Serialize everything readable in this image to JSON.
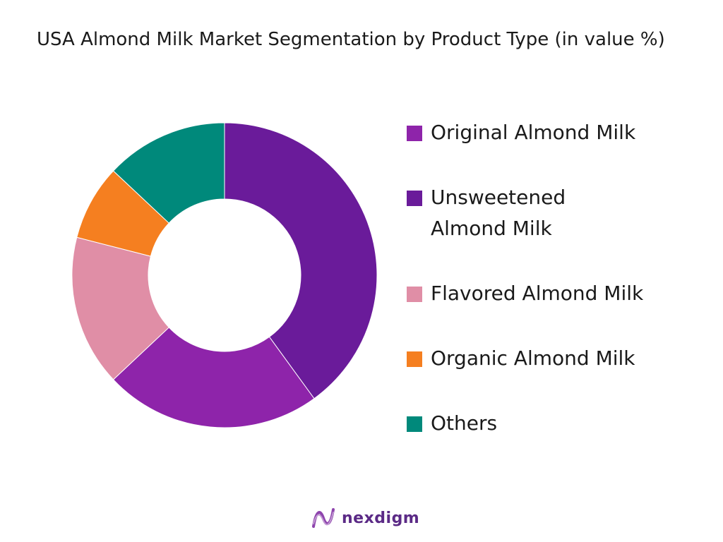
{
  "chart_data": {
    "type": "pie",
    "title": "USA Almond Milk Market Segmentation by Product Type (in value %)",
    "hole": true,
    "categories": [
      "Unsweetened Almond Milk",
      "Original Almond Milk",
      "Flavored Almond Milk",
      "Organic Almond Milk",
      "Others"
    ],
    "values": [
      40,
      23,
      16,
      8,
      13
    ],
    "colors": [
      "#6a1b9a",
      "#8e24aa",
      "#e08ea6",
      "#f57f20",
      "#00897b"
    ],
    "legend_order": [
      {
        "label": "Original Almond Milk",
        "color": "#8e24aa"
      },
      {
        "label": "Unsweetened Almond Milk",
        "color": "#6a1b9a"
      },
      {
        "label": "Flavored Almond Milk",
        "color": "#e08ea6"
      },
      {
        "label": "Organic Almond Milk",
        "color": "#f57f20"
      },
      {
        "label": "Others",
        "color": "#00897b"
      }
    ],
    "legend_position": "right"
  },
  "brand": {
    "name": "nexdigm",
    "logo_icon": "nexdigm-logo-icon",
    "color": "#5b2a86"
  }
}
